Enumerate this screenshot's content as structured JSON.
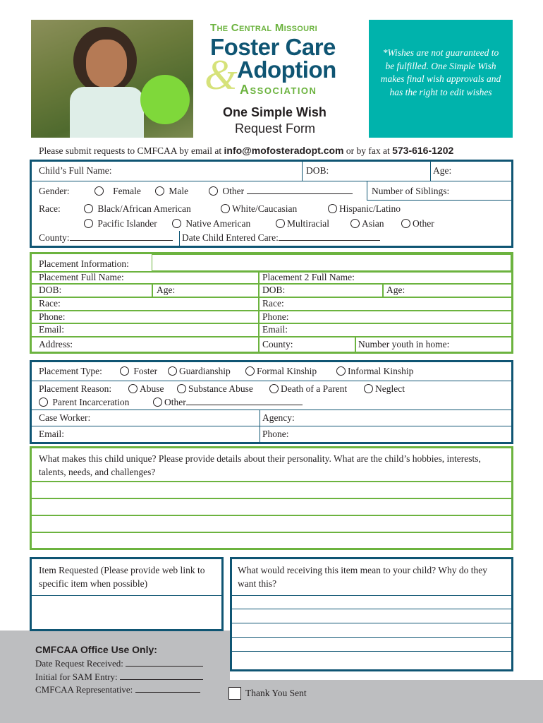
{
  "header": {
    "org_line1": "The Central Missouri",
    "org_line2": "Foster Care",
    "org_amp": "&",
    "org_line3": "Adoption",
    "org_line4": "Association",
    "form_title": "One Simple Wish",
    "form_subtitle": "Request Form",
    "notice": "*Wishes are not guaranteed to be fulfilled. One Simple Wish makes final wish approvals and has the right to edit wishes"
  },
  "submit": {
    "prefix": "Please submit requests to CMFCAA by email at ",
    "email": "info@mofosteradopt.com",
    "middle": " or by fax at ",
    "fax": "573-616-1202"
  },
  "child": {
    "full_name": "Child’s Full Name:",
    "dob": "DOB:",
    "age": "Age:",
    "gender": "Gender:",
    "female": "Female",
    "male": "Male",
    "other": "Other",
    "siblings": "Number of Siblings:",
    "race": "Race:",
    "race_options": [
      "Black/African American",
      "White/Caucasian",
      "Hispanic/Latino",
      "Pacific Islander",
      "Native American",
      "Multiracial",
      "Asian",
      "Other"
    ],
    "county": "County:",
    "date_entered": "Date Child Entered Care:"
  },
  "placement": {
    "info": "Placement Information:",
    "full_name": "Placement Full Name:",
    "dob": "DOB:",
    "age": "Age:",
    "race": "Race:",
    "phone": "Phone:",
    "email": "Email:",
    "address": "Address:",
    "p2_full_name": "Placement 2 Full Name:",
    "p2_dob": "DOB:",
    "p2_age": "Age:",
    "p2_race": "Race:",
    "p2_phone": "Phone:",
    "p2_email": "Email:",
    "county": "County:",
    "youth": "Number youth in home:"
  },
  "placement_type": {
    "label": "Placement Type:",
    "options": [
      "Foster",
      "Guardianship",
      "Formal Kinship",
      "Informal Kinship"
    ],
    "reason_label": "Placement Reason:",
    "reasons": [
      "Abuse",
      "Substance Abuse",
      "Death of a Parent",
      "Neglect",
      "Parent Incarceration",
      "Other"
    ],
    "case_worker": "Case Worker:",
    "agency": "Agency:",
    "email": "Email:",
    "phone": "Phone:"
  },
  "unique": {
    "question": "What makes this child unique? Please provide details about their personality.  What are the child’s hobbies, interests, talents, needs, and challenges?"
  },
  "item": {
    "requested": "Item Requested (Please provide web link to specific item when possible)",
    "meaning": "What would receiving this item mean to your child? Why do they want this?"
  },
  "office": {
    "title": "CMFCAA Office Use Only:",
    "date_received": "Date Request Received:",
    "initial": "Initial for SAM Entry:",
    "rep": "CMFCAA Representative:",
    "thank_you": "Thank You Sent"
  },
  "colors": {
    "navy": "#0f5573",
    "green": "#6cb33f",
    "teal": "#00b3ac",
    "gray": "#bdbec0"
  }
}
